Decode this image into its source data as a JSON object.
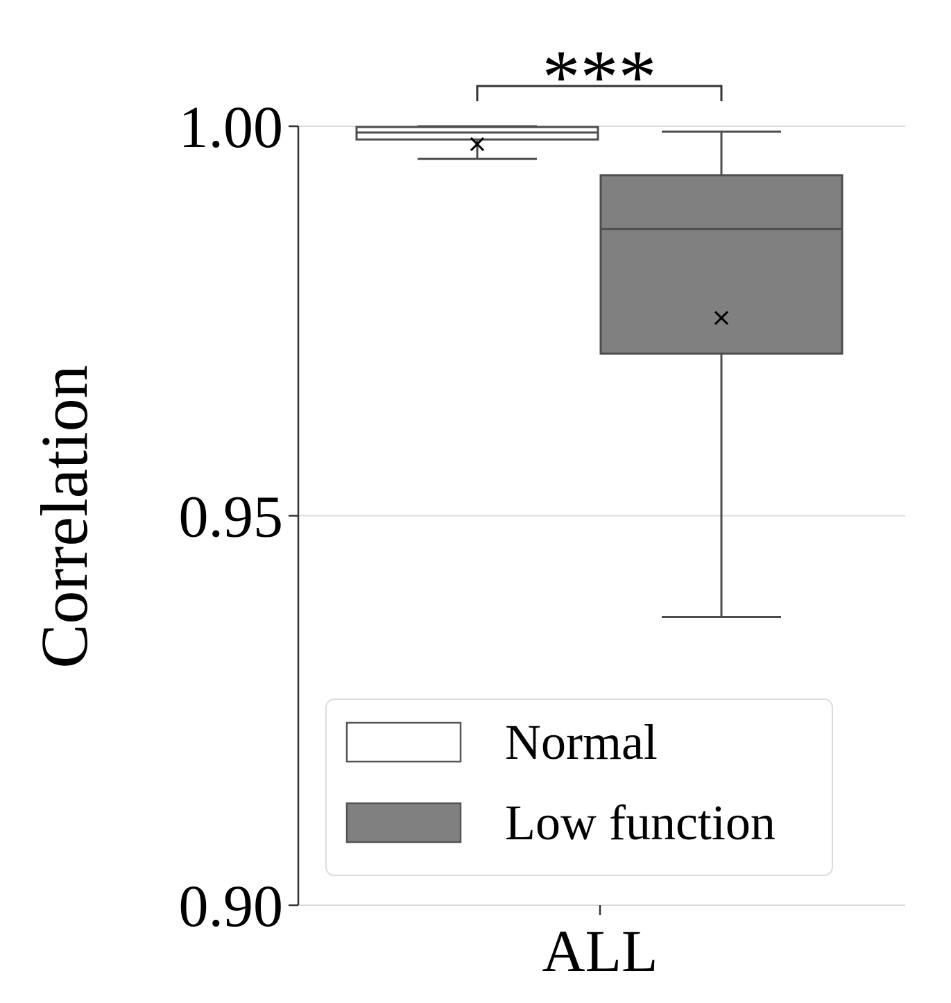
{
  "chart_data": {
    "type": "box",
    "title": "",
    "xlabel": "",
    "ylabel": "Correlation",
    "ylim": [
      0.9,
      1.0
    ],
    "yticks": [
      0.9,
      0.95,
      1.0
    ],
    "ytick_labels": [
      "0.90",
      "0.95",
      "1.00"
    ],
    "grid": "horizontal",
    "categories": [
      "ALL"
    ],
    "legend_position": "lower-right",
    "series": [
      {
        "name": "Normal",
        "color": "#ffffff",
        "whisker_low": 0.9958,
        "q1": 0.9983,
        "median": 0.9992,
        "q3": 0.9999,
        "whisker_high": 1.0,
        "mean": 0.9977
      },
      {
        "name": "Low function",
        "color": "#808080",
        "whisker_low": 0.937,
        "q1": 0.9708,
        "median": 0.9868,
        "q3": 0.9937,
        "whisker_high": 0.9993,
        "mean": 0.9754
      }
    ],
    "significance": {
      "label": "***",
      "between": [
        "Normal",
        "Low function"
      ]
    }
  }
}
